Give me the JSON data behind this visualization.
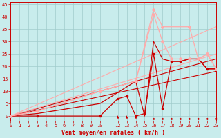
{
  "xlabel": "Vent moyen/en rafales ( km/h )",
  "bg_color": "#c8ecec",
  "grid_color": "#a0cccc",
  "xmin": 0,
  "xmax": 23,
  "ymin": -2,
  "ymax": 46,
  "xticks": [
    0,
    1,
    2,
    3,
    4,
    5,
    6,
    7,
    8,
    9,
    10,
    12,
    13,
    14,
    15,
    16,
    17,
    18,
    19,
    20,
    21,
    22,
    23
  ],
  "yticks": [
    0,
    5,
    10,
    15,
    20,
    25,
    30,
    35,
    40,
    45
  ],
  "xlabel_color": "#cc0000",
  "tick_color": "#cc0000",
  "spine_color": "#cc0000",
  "lines": [
    {
      "x": [
        0,
        23
      ],
      "y": [
        0,
        18
      ],
      "color": "#cc0000",
      "lw": 0.8,
      "marker": null,
      "ms": 0
    },
    {
      "x": [
        0,
        23
      ],
      "y": [
        0,
        23
      ],
      "color": "#cc0000",
      "lw": 0.8,
      "marker": null,
      "ms": 0
    },
    {
      "x": [
        0,
        23
      ],
      "y": [
        0,
        36
      ],
      "color": "#ffaaaa",
      "lw": 0.8,
      "marker": null,
      "ms": 0
    },
    {
      "x": [
        0,
        23
      ],
      "y": [
        0,
        25
      ],
      "color": "#ffaaaa",
      "lw": 0.8,
      "marker": null,
      "ms": 0
    },
    {
      "x": [
        0,
        3,
        10,
        14,
        15,
        16,
        17,
        18,
        19,
        20,
        21,
        22,
        23
      ],
      "y": [
        0,
        1,
        5,
        14,
        0,
        30,
        23,
        22,
        22,
        23,
        23,
        19,
        19
      ],
      "color": "#cc0000",
      "lw": 0.9,
      "marker": null,
      "ms": 0
    },
    {
      "x": [
        0,
        3,
        10,
        12,
        13,
        14,
        15,
        16,
        17,
        18,
        19,
        20,
        21,
        22,
        23
      ],
      "y": [
        0,
        0,
        0,
        7,
        8,
        0,
        1,
        25,
        3,
        22,
        22,
        23,
        23,
        19,
        19
      ],
      "color": "#cc0000",
      "lw": 0.9,
      "marker": "s",
      "ms": 2.0
    },
    {
      "x": [
        0,
        3,
        10,
        14,
        16,
        17,
        18,
        19,
        20,
        21,
        22,
        23
      ],
      "y": [
        0,
        2,
        10,
        14,
        41,
        30,
        23,
        23,
        23,
        23,
        25,
        19
      ],
      "color": "#ffaaaa",
      "lw": 0.9,
      "marker": "D",
      "ms": 2.0
    },
    {
      "x": [
        0,
        3,
        10,
        14,
        16,
        17,
        20,
        21,
        22,
        23
      ],
      "y": [
        0,
        2,
        10,
        14,
        43,
        36,
        36,
        23,
        25,
        19
      ],
      "color": "#ffaaaa",
      "lw": 0.9,
      "marker": "D",
      "ms": 2.0
    }
  ],
  "arrows_up": [
    12,
    13,
    14
  ],
  "arrows_left": [
    16,
    17,
    18,
    19,
    20,
    21,
    22,
    23
  ]
}
